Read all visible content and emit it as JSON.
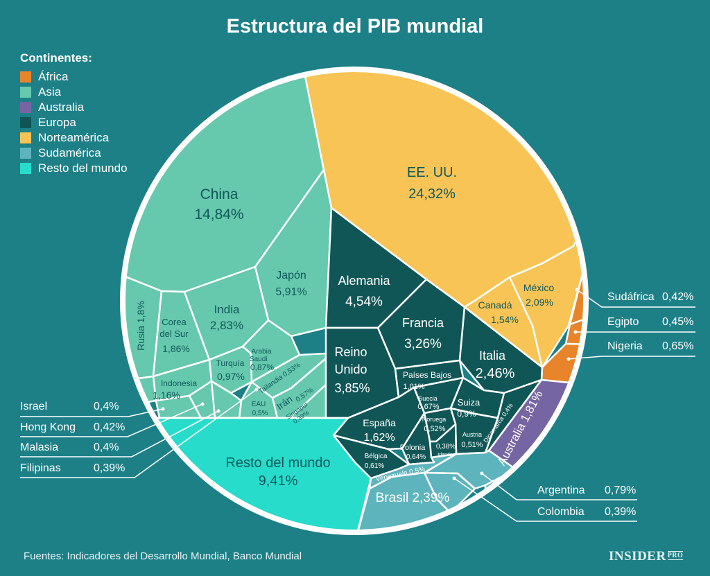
{
  "title": "Estructura del PIB mundial",
  "legend": {
    "title": "Continentes:",
    "items": [
      {
        "label": "África",
        "color": "#e8852a"
      },
      {
        "label": "Asia",
        "color": "#66c9ad"
      },
      {
        "label": "Australia",
        "color": "#7565a3"
      },
      {
        "label": "Europa",
        "color": "#115656"
      },
      {
        "label": "Norteamérica",
        "color": "#f8c455"
      },
      {
        "label": "Sudamérica",
        "color": "#5eb4bd"
      },
      {
        "label": "Resto del mundo",
        "color": "#27dccb"
      }
    ]
  },
  "source": "Fuentes: Indicadores del Desarrollo Mundial, Banco Mundial",
  "logo": {
    "main": "INSIDER",
    "sub": "PRO"
  },
  "chart_data": {
    "type": "voronoi-treemap",
    "title": "Estructura del PIB mundial",
    "unit": "% del PIB mundial",
    "groups": [
      {
        "continent": "Norteamérica",
        "items": [
          {
            "name": "EE. UU.",
            "value": "24,32%"
          },
          {
            "name": "México",
            "value": "2,09%"
          },
          {
            "name": "Canadá",
            "value": "1,54%"
          }
        ]
      },
      {
        "continent": "Asia",
        "items": [
          {
            "name": "China",
            "value": "14,84%"
          },
          {
            "name": "Japón",
            "value": "5,91%"
          },
          {
            "name": "India",
            "value": "2,83%"
          },
          {
            "name": "Corea del Sur",
            "value": "1,86%"
          },
          {
            "name": "Rusia",
            "value": "1,8%"
          },
          {
            "name": "Indonesia",
            "value": "1,16%"
          },
          {
            "name": "Turquía",
            "value": "0,97%"
          },
          {
            "name": "Arabia Saudí",
            "value": "0,87%"
          },
          {
            "name": "Irán",
            "value": "0,57%"
          },
          {
            "name": "Tailandia",
            "value": "0,53%"
          },
          {
            "name": "EAU",
            "value": "0,5%"
          },
          {
            "name": "Singapur",
            "value": "0,39%"
          },
          {
            "name": "Israel",
            "value": "0,4%"
          },
          {
            "name": "Hong Kong",
            "value": "0,42%"
          },
          {
            "name": "Malasia",
            "value": "0,4%"
          },
          {
            "name": "Filipinas",
            "value": "0,39%"
          }
        ]
      },
      {
        "continent": "Europa",
        "items": [
          {
            "name": "Alemania",
            "value": "4,54%"
          },
          {
            "name": "Reino Unido",
            "value": "3,85%"
          },
          {
            "name": "Francia",
            "value": "3,26%"
          },
          {
            "name": "Italia",
            "value": "2,46%"
          },
          {
            "name": "España",
            "value": "1,62%"
          },
          {
            "name": "Países Bajos",
            "value": "1,01%"
          },
          {
            "name": "Suiza",
            "value": "0,9%"
          },
          {
            "name": "Suecia",
            "value": "0,67%"
          },
          {
            "name": "Polonia",
            "value": "0,64%"
          },
          {
            "name": "Bélgica",
            "value": "0,61%"
          },
          {
            "name": "Noruega",
            "value": "0,52%"
          },
          {
            "name": "Austria",
            "value": "0,51%"
          },
          {
            "name": "Dinamarca",
            "value": "0,4%"
          },
          {
            "name": "Irlanda",
            "value": "0,38%"
          }
        ]
      },
      {
        "continent": "Australia",
        "items": [
          {
            "name": "Australia",
            "value": "1,81%"
          }
        ]
      },
      {
        "continent": "África",
        "items": [
          {
            "name": "Nigeria",
            "value": "0,65%"
          },
          {
            "name": "Egipto",
            "value": "0,45%"
          },
          {
            "name": "Sudáfrica",
            "value": "0,42%"
          }
        ]
      },
      {
        "continent": "Sudamérica",
        "items": [
          {
            "name": "Brasil",
            "value": "2,39%"
          },
          {
            "name": "Argentina",
            "value": "0,79%"
          },
          {
            "name": "Venezuela",
            "value": "0,5%"
          },
          {
            "name": "Colombia",
            "value": "0,39%"
          }
        ]
      },
      {
        "continent": "Resto del mundo",
        "items": [
          {
            "name": "Resto del mundo",
            "value": "9,41%"
          }
        ]
      }
    ]
  },
  "labels": {
    "usa": [
      "EE. UU.",
      "24,32%"
    ],
    "china": [
      "China",
      "14,84%"
    ],
    "japan": [
      "Japón",
      "5,91%"
    ],
    "india": [
      "India",
      "2,83%"
    ],
    "korea": [
      "Corea",
      "del Sur",
      "1,86%"
    ],
    "russia": "Rusia 1,8%",
    "indonesia": [
      "Indonesia",
      "1,16%"
    ],
    "turkey": [
      "Turquía",
      "0,97%"
    ],
    "saudi": [
      "Arabia",
      "Saudí",
      "0,87%"
    ],
    "thailand": "Tailandia 0,53%",
    "iran": [
      "Irán",
      "0,57%"
    ],
    "singapore": [
      "Singapur",
      "0,39%"
    ],
    "uae": [
      "EAU",
      "0,5%"
    ],
    "germany": [
      "Alemania",
      "4,54%"
    ],
    "france": [
      "Francia",
      "3,26%"
    ],
    "uk": [
      "Reino",
      "Unido",
      "3,85%"
    ],
    "italy": [
      "Italia",
      "2,46%"
    ],
    "netherlands": [
      "Países Bajos",
      "1,01%"
    ],
    "sweden": [
      "Suecia",
      "0,67%"
    ],
    "switzerland": [
      "Suiza",
      "0,9%"
    ],
    "spain": [
      "España",
      "1,62%"
    ],
    "norway": [
      "Noruega",
      "0,52%"
    ],
    "poland": [
      "Polonia",
      "0,64%"
    ],
    "ireland": [
      "0,38%",
      "Irlanda"
    ],
    "austria": [
      "Austria",
      "0,51%"
    ],
    "belgium": [
      "Bélgica",
      "0,61%"
    ],
    "denmark": "Dinamarca 0,4%",
    "australia": "Australia 1,81%",
    "canada": [
      "Canadá",
      "1,54%"
    ],
    "mexico": [
      "México",
      "2,09%"
    ],
    "rest": [
      "Resto del mundo",
      "9,41%"
    ],
    "venezuela": "Venezuela 0,5%",
    "brazil": "Brasil 2,39%"
  },
  "callouts": {
    "right": [
      {
        "name": "Sudáfrica",
        "value": "0,42%"
      },
      {
        "name": "Egipto",
        "value": "0,45%"
      },
      {
        "name": "Nigeria",
        "value": "0,65%"
      }
    ],
    "left": [
      {
        "name": "Israel",
        "value": "0,4%"
      },
      {
        "name": "Hong Kong",
        "value": "0,42%"
      },
      {
        "name": "Malasia",
        "value": "0,4%"
      },
      {
        "name": "Filipinas",
        "value": "0,39%"
      }
    ],
    "bottom": [
      {
        "name": "Argentina",
        "value": "0,79%"
      },
      {
        "name": "Colombia",
        "value": "0,39%"
      }
    ]
  }
}
